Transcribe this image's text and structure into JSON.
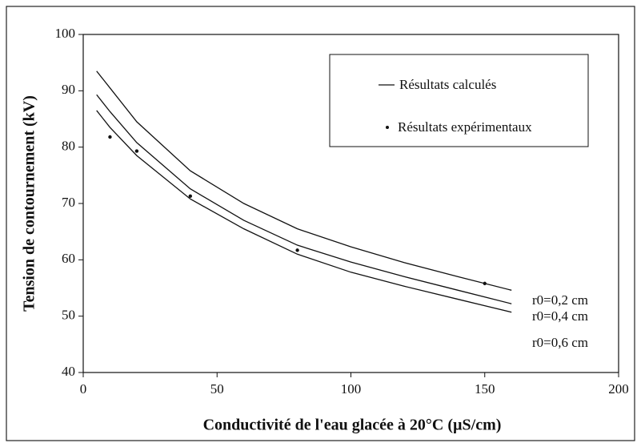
{
  "chart_data": {
    "type": "line",
    "xlabel": "Conductivité de l'eau glacée à 20°C (µS/cm)",
    "ylabel": "Tension de contournement (kV)",
    "xlim": [
      0,
      200
    ],
    "xticks": [
      0,
      50,
      100,
      150,
      200
    ],
    "ylim": [
      40,
      100
    ],
    "yticks": [
      40,
      50,
      60,
      70,
      80,
      90,
      100
    ],
    "legend": [
      "Résultats calculés",
      "Résultats expérimentaux"
    ],
    "color": "#111111",
    "series": [
      {
        "name": "r0=0,2 cm",
        "x": [
          5,
          10,
          20,
          40,
          60,
          80,
          100,
          120,
          140,
          160
        ],
        "values": [
          93.5,
          90.5,
          84.5,
          75.8,
          70,
          65.5,
          62.3,
          59.5,
          57,
          54.6
        ]
      },
      {
        "name": "r0=0,4 cm",
        "x": [
          5,
          10,
          20,
          40,
          60,
          80,
          100,
          120,
          140,
          160
        ],
        "values": [
          89.3,
          86.3,
          80.8,
          72.6,
          67,
          62.6,
          59.6,
          57,
          54.6,
          52.2
        ]
      },
      {
        "name": "r0=0,6 cm",
        "x": [
          5,
          10,
          20,
          40,
          60,
          80,
          100,
          120,
          140,
          160
        ],
        "values": [
          86.5,
          83.5,
          78.5,
          70.8,
          65.5,
          61,
          57.8,
          55.3,
          53,
          50.7
        ]
      }
    ],
    "points": {
      "x": [
        10,
        20,
        40,
        80,
        150
      ],
      "values": [
        81.8,
        79.3,
        71.3,
        61.7,
        55.8
      ]
    }
  }
}
